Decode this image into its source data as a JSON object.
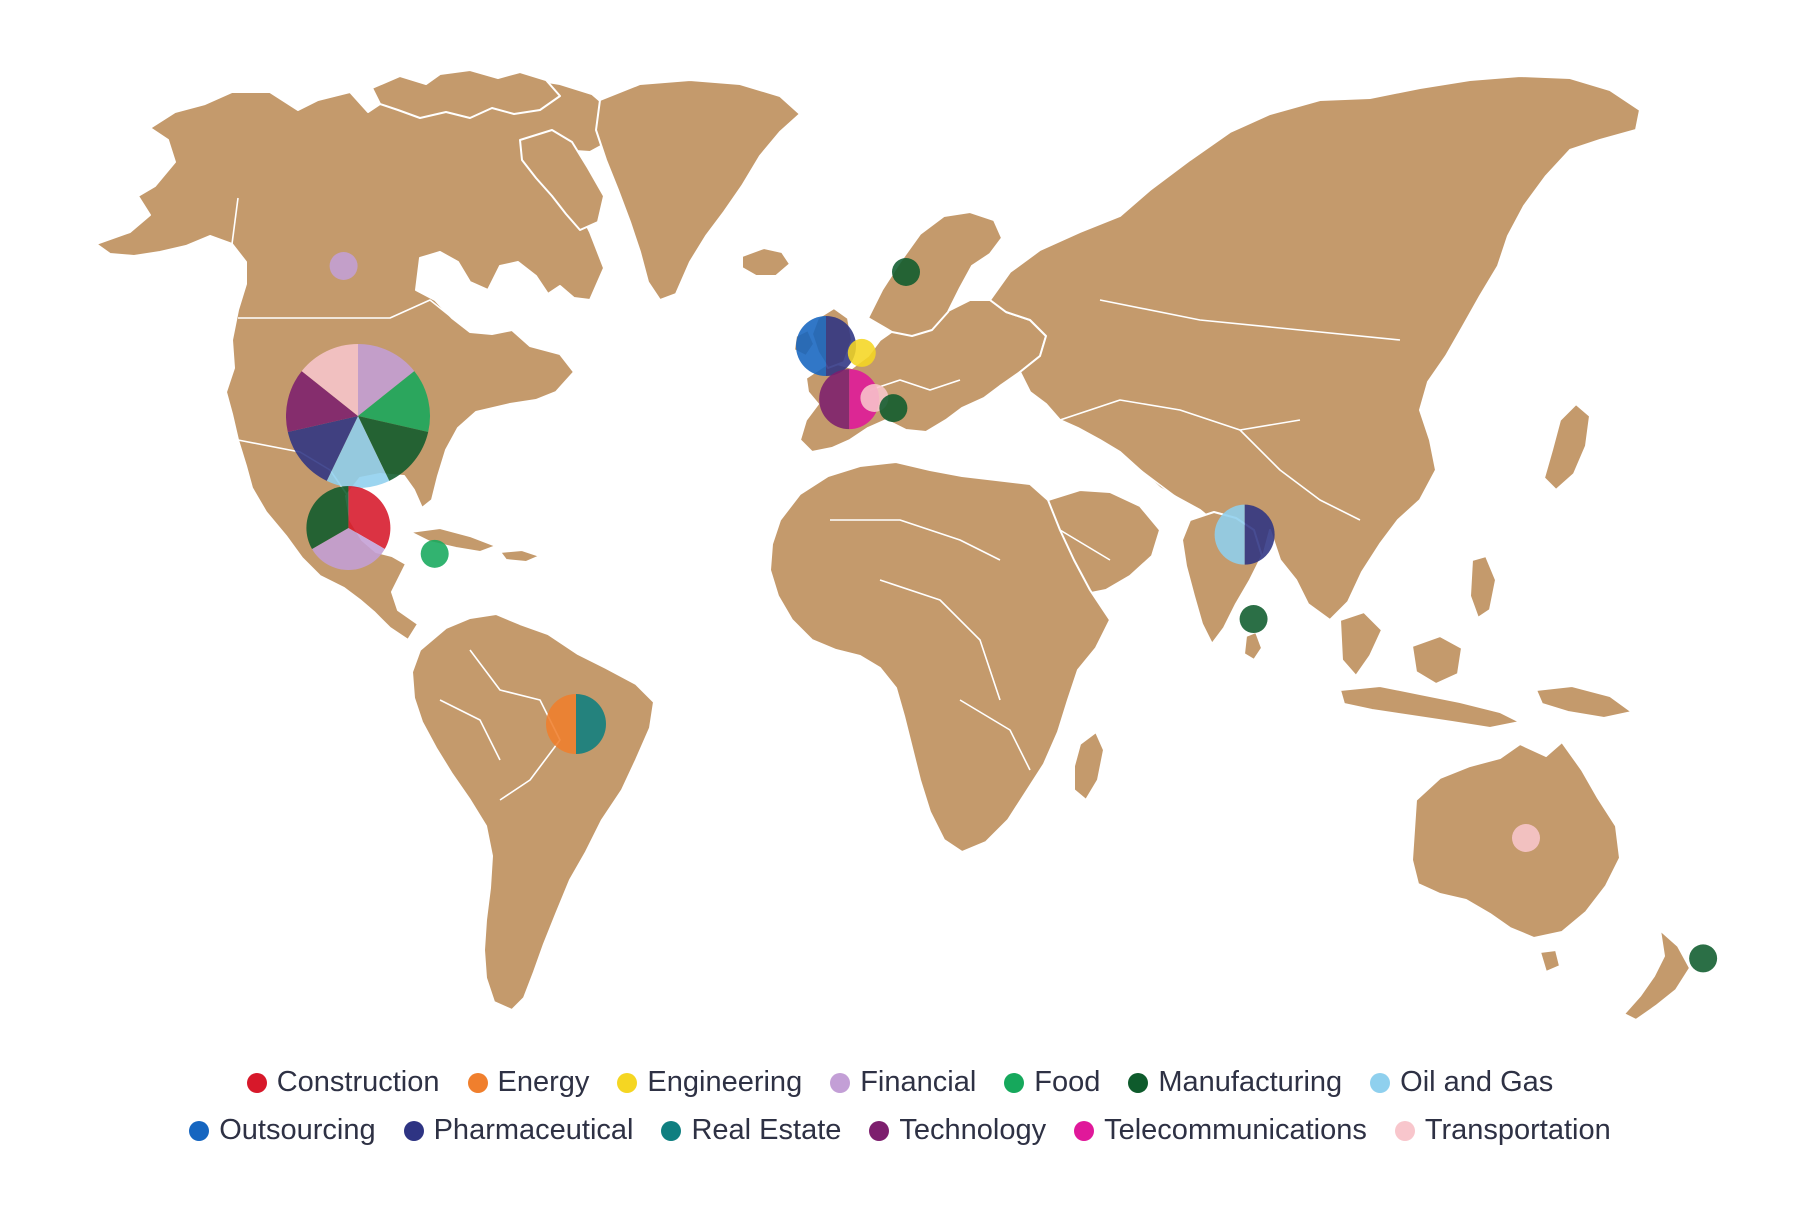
{
  "colors": {
    "land": "#c49a6c",
    "border": "#ffffff",
    "background": "#ffffff"
  },
  "categories": [
    {
      "name": "Construction",
      "color": "#d7182a"
    },
    {
      "name": "Energy",
      "color": "#f07f2d"
    },
    {
      "name": "Engineering",
      "color": "#f5d622"
    },
    {
      "name": "Financial",
      "color": "#c39fd6"
    },
    {
      "name": "Food",
      "color": "#16a85c"
    },
    {
      "name": "Manufacturing",
      "color": "#0e5b2c"
    },
    {
      "name": "Oil and Gas",
      "color": "#8fd0ee"
    },
    {
      "name": "Outsourcing",
      "color": "#1565c0"
    },
    {
      "name": "Pharmaceutical",
      "color": "#2e3483"
    },
    {
      "name": "Real Estate",
      "color": "#0f7f80"
    },
    {
      "name": "Technology",
      "color": "#7d1f6e"
    },
    {
      "name": "Telecommunications",
      "color": "#e0189a"
    },
    {
      "name": "Transportation",
      "color": "#f8c6cc"
    }
  ],
  "legend": {
    "row1": [
      "Construction",
      "Energy",
      "Engineering",
      "Financial",
      "Food",
      "Manufacturing",
      "Oil and Gas"
    ],
    "row2": [
      "Outsourcing",
      "Pharmaceutical",
      "Real Estate",
      "Technology",
      "Telecommunications",
      "Transportation"
    ]
  },
  "markers": [
    {
      "location": "Canada",
      "lon": -103,
      "lat": 56,
      "sectors": [
        "Financial"
      ]
    },
    {
      "location": "United States",
      "lon": -100,
      "lat": 39,
      "sectors": [
        "Financial",
        "Food",
        "Manufacturing",
        "Oil and Gas",
        "Pharmaceutical",
        "Technology",
        "Transportation"
      ]
    },
    {
      "location": "Mexico",
      "lon": -102,
      "lat": 23,
      "sectors": [
        "Construction",
        "Financial",
        "Manufacturing"
      ]
    },
    {
      "location": "Dominican Republic",
      "lon": -70.5,
      "lat": 19,
      "sectors": [
        "Food"
      ]
    },
    {
      "location": "Brazil",
      "lon": -52,
      "lat": -12,
      "sectors": [
        "Real Estate",
        "Energy"
      ]
    },
    {
      "location": "Sweden",
      "lon": 16,
      "lat": 62,
      "sectors": [
        "Manufacturing"
      ]
    },
    {
      "location": "United Kingdom",
      "lon": -3,
      "lat": 53,
      "sectors": [
        "Pharmaceutical",
        "Outsourcing"
      ]
    },
    {
      "location": "Netherlands",
      "lon": 5.5,
      "lat": 52.2,
      "sectors": [
        "Engineering"
      ]
    },
    {
      "location": "France",
      "lon": 2.5,
      "lat": 46.5,
      "sectors": [
        "Telecommunications",
        "Technology"
      ]
    },
    {
      "location": "Switzerland",
      "lon": 8.5,
      "lat": 47,
      "sectors": [
        "Transportation"
      ]
    },
    {
      "location": "Italy",
      "lon": 13,
      "lat": 42.5,
      "sectors": [
        "Manufacturing"
      ]
    },
    {
      "location": "India",
      "lon": 79,
      "lat": 22,
      "sectors": [
        "Pharmaceutical",
        "Oil and Gas"
      ]
    },
    {
      "location": "Sri Lanka",
      "lon": 80.7,
      "lat": 7.8,
      "sectors": [
        "Manufacturing"
      ]
    },
    {
      "location": "Australia",
      "lon": 134,
      "lat": -25,
      "sectors": [
        "Transportation"
      ]
    },
    {
      "location": "New Zealand",
      "lon": 176,
      "lat": -39,
      "sectors": [
        "Manufacturing"
      ]
    }
  ]
}
